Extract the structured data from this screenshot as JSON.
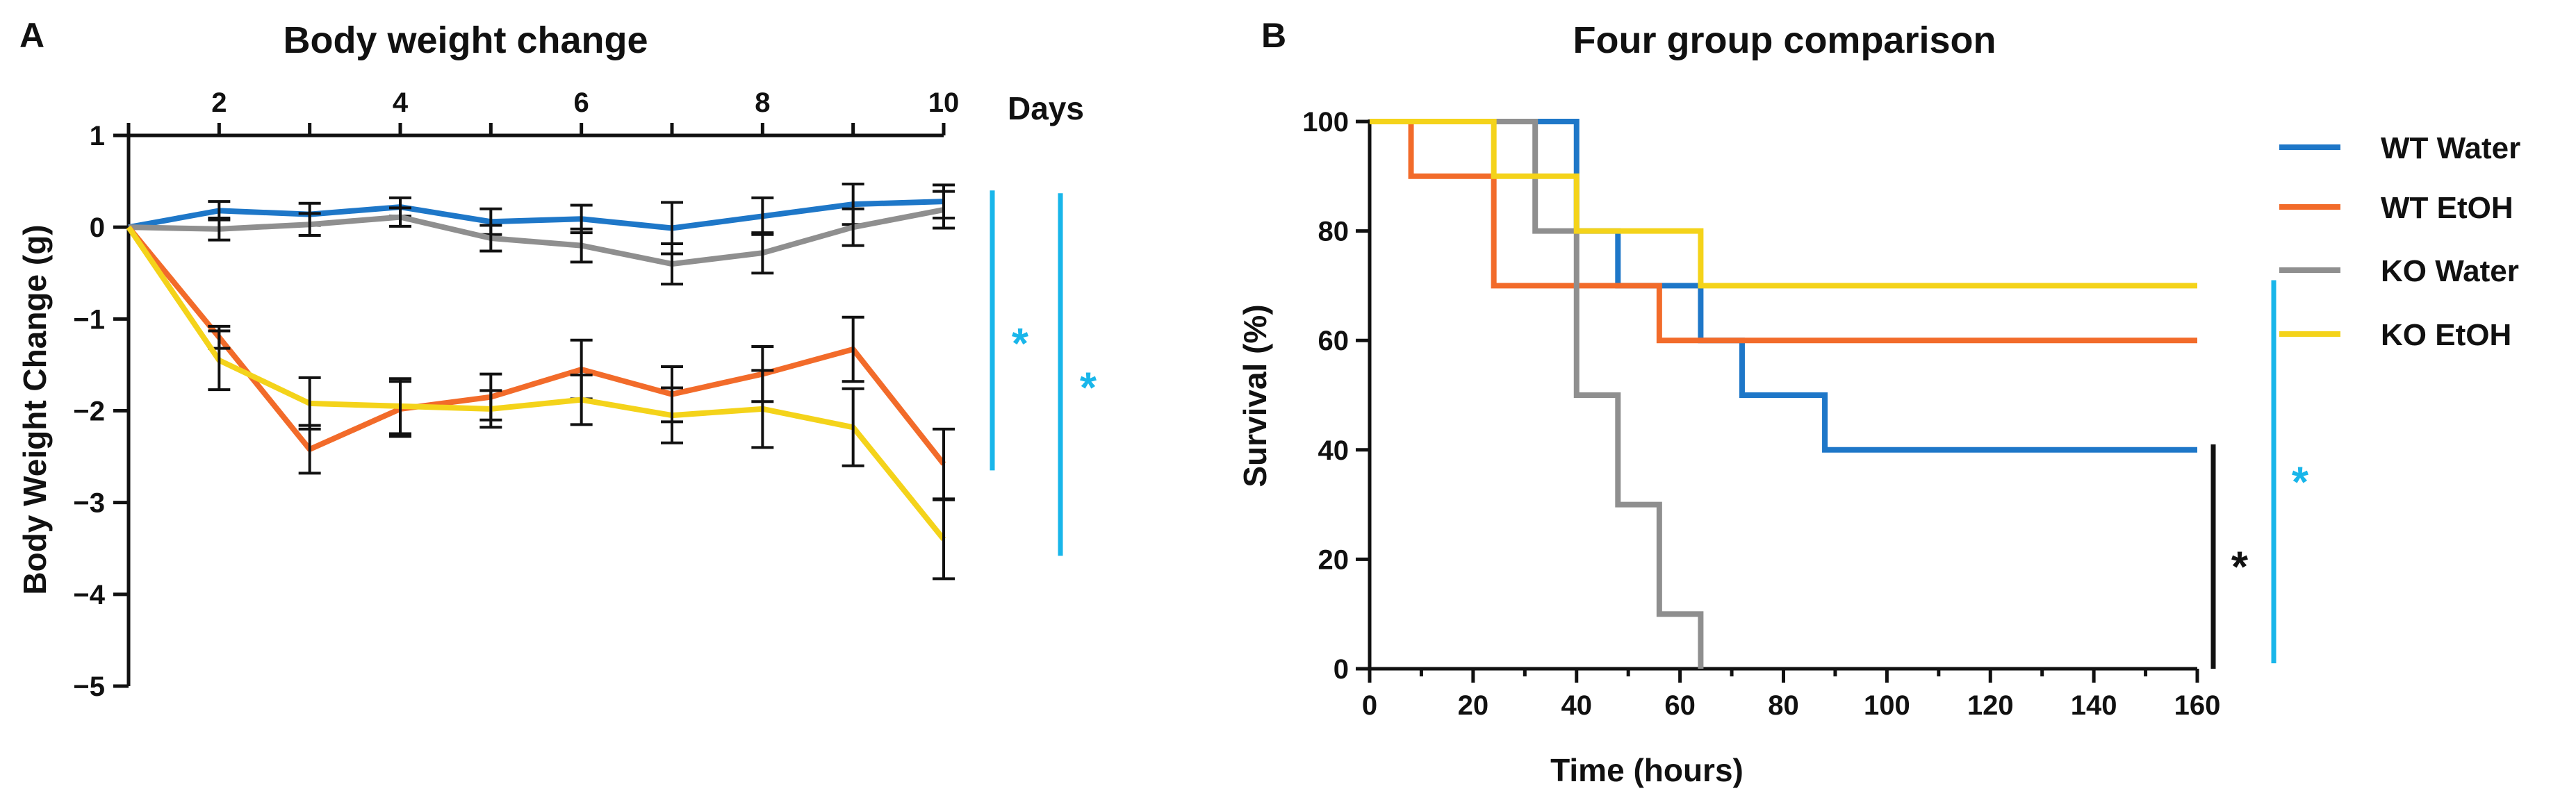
{
  "panels": {
    "a_label": "A",
    "b_label": "B"
  },
  "series_colors": {
    "wt_water": "#1e77c8",
    "wt_etoh": "#f26b2a",
    "ko_water": "#8f8f8f",
    "ko_etoh": "#f4d31a",
    "significance": "#19b6ea",
    "axis": "#111111"
  },
  "chart_data": [
    {
      "type": "line",
      "title": "Body weight change",
      "xlabel": "Days",
      "ylabel": "Body Weight Change (g)",
      "x_axis_position": "top",
      "xlim": [
        1,
        10
      ],
      "ylim": [
        -5,
        1
      ],
      "x_ticks": [
        "2",
        "4",
        "6",
        "8",
        "10"
      ],
      "y_ticks": [
        "1",
        "0",
        "−1",
        "−2",
        "−3",
        "−4",
        "−5"
      ],
      "x": [
        1,
        2,
        3,
        4,
        5,
        6,
        7,
        8,
        9,
        10
      ],
      "series": [
        {
          "name": "WT Water",
          "color": "#1e77c8",
          "values": [
            0,
            0.18,
            0.14,
            0.22,
            0.06,
            0.09,
            -0.01,
            0.12,
            0.25,
            0.28
          ],
          "errors": [
            0,
            0.1,
            0.12,
            0.1,
            0.14,
            0.15,
            0.28,
            0.2,
            0.22,
            0.18
          ]
        },
        {
          "name": "KO Water",
          "color": "#8f8f8f",
          "values": [
            0,
            -0.02,
            0.03,
            0.11,
            -0.12,
            -0.2,
            -0.4,
            -0.28,
            0.0,
            0.19
          ],
          "errors": [
            0,
            0.12,
            0.12,
            0.1,
            0.14,
            0.18,
            0.22,
            0.22,
            0.2,
            0.2
          ]
        },
        {
          "name": "WT EtOH",
          "color": "#f26b2a",
          "values": [
            0,
            -1.2,
            -2.42,
            -1.98,
            -1.85,
            -1.55,
            -1.82,
            -1.6,
            -1.33,
            -2.58
          ],
          "errors": [
            0,
            0.12,
            0.26,
            0.3,
            0.25,
            0.32,
            0.3,
            0.3,
            0.35,
            0.38
          ]
        },
        {
          "name": "KO EtOH",
          "color": "#f4d31a",
          "values": [
            0,
            -1.45,
            -1.92,
            -1.95,
            -1.98,
            -1.88,
            -2.05,
            -1.98,
            -2.18,
            -3.4
          ],
          "errors": [
            0,
            0.32,
            0.28,
            0.3,
            0.2,
            0.27,
            0.3,
            0.42,
            0.42,
            0.43
          ]
        }
      ],
      "annotations": [
        {
          "text": "*",
          "color": "#19b6ea",
          "y_from": 0.4,
          "y_to": -2.65
        },
        {
          "text": "*",
          "color": "#19b6ea",
          "y_from": 0.37,
          "y_to": -3.58
        }
      ]
    },
    {
      "type": "line",
      "subtype": "survival-step",
      "title": "Four group comparison",
      "xlabel": "Time  (hours)",
      "ylabel": "Survival (%)",
      "xlim": [
        0,
        160
      ],
      "ylim": [
        0,
        100
      ],
      "x_ticks": [
        "0",
        "20",
        "40",
        "60",
        "80",
        "100",
        "120",
        "140",
        "160"
      ],
      "y_ticks": [
        "0",
        "20",
        "40",
        "60",
        "80",
        "100"
      ],
      "legend_position": "top-right",
      "series": [
        {
          "name": "WT Water",
          "color": "#1e77c8",
          "steps": [
            [
              0,
              100
            ],
            [
              40,
              80
            ],
            [
              48,
              70
            ],
            [
              64,
              60
            ],
            [
              72,
              50
            ],
            [
              88,
              40
            ],
            [
              160,
              40
            ]
          ]
        },
        {
          "name": "WT EtOH",
          "color": "#f26b2a",
          "steps": [
            [
              0,
              100
            ],
            [
              8,
              90
            ],
            [
              24,
              70
            ],
            [
              56,
              60
            ],
            [
              160,
              60
            ]
          ]
        },
        {
          "name": "KO Water",
          "color": "#8f8f8f",
          "steps": [
            [
              0,
              100
            ],
            [
              32,
              80
            ],
            [
              40,
              50
            ],
            [
              48,
              30
            ],
            [
              56,
              10
            ],
            [
              64,
              0
            ]
          ]
        },
        {
          "name": "KO EtOH",
          "color": "#f4d31a",
          "steps": [
            [
              0,
              100
            ],
            [
              24,
              90
            ],
            [
              40,
              80
            ],
            [
              56,
              80
            ],
            [
              64,
              70
            ],
            [
              160,
              70
            ]
          ]
        }
      ],
      "annotations": [
        {
          "text": "*",
          "color": "#111111",
          "y_from": 41,
          "y_to": 0
        },
        {
          "text": "*",
          "color": "#19b6ea",
          "y_from": 71,
          "y_to": 1
        }
      ]
    }
  ]
}
